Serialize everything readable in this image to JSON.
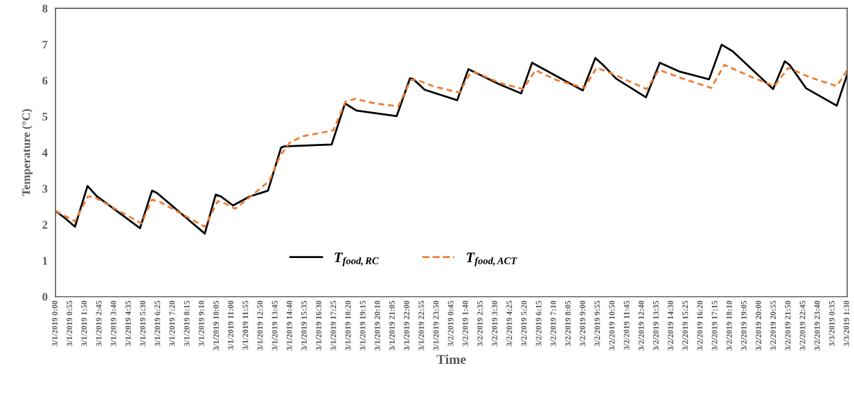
{
  "chart_data": {
    "type": "line",
    "xlabel": "Time",
    "ylabel": "Temperature (°C)",
    "xlim": [
      "2019-03-01T00:00",
      "2019-03-03T01:30"
    ],
    "ylim": [
      0,
      8
    ],
    "yticks": [
      0,
      1,
      2,
      3,
      4,
      5,
      6,
      7,
      8
    ],
    "xticks": [
      {
        "value": "2019-03-01T00:00",
        "label": "3/1/2019 0:00"
      },
      {
        "value": "2019-03-01T00:55",
        "label": "3/1/2019 0:55"
      },
      {
        "value": "2019-03-01T01:50",
        "label": "3/1/2019 1:50"
      },
      {
        "value": "2019-03-01T02:45",
        "label": "3/1/2019 2:45"
      },
      {
        "value": "2019-03-01T03:40",
        "label": "3/1/2019 3:40"
      },
      {
        "value": "2019-03-01T04:35",
        "label": "3/1/2019 4:35"
      },
      {
        "value": "2019-03-01T05:30",
        "label": "3/1/2019 5:30"
      },
      {
        "value": "2019-03-01T06:25",
        "label": "3/1/2019 6:25"
      },
      {
        "value": "2019-03-01T07:20",
        "label": "3/1/2019 7:20"
      },
      {
        "value": "2019-03-01T08:15",
        "label": "3/1/2019 8:15"
      },
      {
        "value": "2019-03-01T09:10",
        "label": "3/1/2019 9:10"
      },
      {
        "value": "2019-03-01T10:05",
        "label": "3/1/2019 10:05"
      },
      {
        "value": "2019-03-01T11:00",
        "label": "3/1/2019 11:00"
      },
      {
        "value": "2019-03-01T11:55",
        "label": "3/1/2019 11:55"
      },
      {
        "value": "2019-03-01T12:50",
        "label": "3/1/2019 12:50"
      },
      {
        "value": "2019-03-01T13:45",
        "label": "3/1/2019 13:45"
      },
      {
        "value": "2019-03-01T14:40",
        "label": "3/1/2019 14:40"
      },
      {
        "value": "2019-03-01T15:35",
        "label": "3/1/2019 15:35"
      },
      {
        "value": "2019-03-01T16:30",
        "label": "3/1/2019 16:30"
      },
      {
        "value": "2019-03-01T17:25",
        "label": "3/1/2019 17:25"
      },
      {
        "value": "2019-03-01T18:20",
        "label": "3/1/2019 18:20"
      },
      {
        "value": "2019-03-01T19:15",
        "label": "3/1/2019 19:15"
      },
      {
        "value": "2019-03-01T20:10",
        "label": "3/1/2019 20:10"
      },
      {
        "value": "2019-03-01T21:05",
        "label": "3/1/2019 21:05"
      },
      {
        "value": "2019-03-01T22:00",
        "label": "3/1/2019 22:00"
      },
      {
        "value": "2019-03-01T22:55",
        "label": "3/1/2019 22:55"
      },
      {
        "value": "2019-03-01T23:50",
        "label": "3/1/2019 23:50"
      },
      {
        "value": "2019-03-02T00:45",
        "label": "3/2/2019 0:45"
      },
      {
        "value": "2019-03-02T01:40",
        "label": "3/2/2019 1:40"
      },
      {
        "value": "2019-03-02T02:35",
        "label": "3/2/2019 2:35"
      },
      {
        "value": "2019-03-02T03:30",
        "label": "3/2/2019 3:30"
      },
      {
        "value": "2019-03-02T04:25",
        "label": "3/2/2019 4:25"
      },
      {
        "value": "2019-03-02T05:20",
        "label": "3/2/2019 5:20"
      },
      {
        "value": "2019-03-02T06:15",
        "label": "3/2/2019 6:15"
      },
      {
        "value": "2019-03-02T07:10",
        "label": "3/2/2019 7:10"
      },
      {
        "value": "2019-03-02T08:05",
        "label": "3/2/2019 8:05"
      },
      {
        "value": "2019-03-02T09:00",
        "label": "3/2/2019 9:00"
      },
      {
        "value": "2019-03-02T09:55",
        "label": "3/2/2019 9:55"
      },
      {
        "value": "2019-03-02T10:50",
        "label": "3/2/2019 10:50"
      },
      {
        "value": "2019-03-02T11:45",
        "label": "3/2/2019 11:45"
      },
      {
        "value": "2019-03-02T12:40",
        "label": "3/2/2019 12:40"
      },
      {
        "value": "2019-03-02T13:35",
        "label": "3/2/2019 13:35"
      },
      {
        "value": "2019-03-02T14:30",
        "label": "3/2/2019 14:30"
      },
      {
        "value": "2019-03-02T15:25",
        "label": "3/2/2019 15:25"
      },
      {
        "value": "2019-03-02T16:20",
        "label": "3/2/2019 16:20"
      },
      {
        "value": "2019-03-02T17:15",
        "label": "3/2/2019 17:15"
      },
      {
        "value": "2019-03-02T18:10",
        "label": "3/2/2019 18:10"
      },
      {
        "value": "2019-03-02T19:05",
        "label": "3/2/2019 19:05"
      },
      {
        "value": "2019-03-02T20:00",
        "label": "3/2/2019 20:00"
      },
      {
        "value": "2019-03-02T20:55",
        "label": "3/2/2019 20:55"
      },
      {
        "value": "2019-03-02T21:50",
        "label": "3/2/2019 21:50"
      },
      {
        "value": "2019-03-02T22:45",
        "label": "3/2/2019 22:45"
      },
      {
        "value": "2019-03-02T23:40",
        "label": "3/2/2019 23:40"
      },
      {
        "value": "2019-03-03T00:35",
        "label": "3/3/2019 0:35"
      },
      {
        "value": "2019-03-03T01:30",
        "label": "3/3/2019 1:30"
      }
    ],
    "grid": false,
    "legend": "bottom",
    "marker": "none",
    "series": [
      {
        "name": "T$_{food,RC}$",
        "color": "#000000",
        "line_style": "solid",
        "x": [
          "2019-03-01T00:00",
          "2019-03-01T00:37",
          "2019-03-01T01:13",
          "2019-03-01T02:00",
          "2019-03-01T02:36",
          "2019-03-01T05:17",
          "2019-03-01T06:02",
          "2019-03-01T06:20",
          "2019-03-01T09:20",
          "2019-03-01T10:01",
          "2019-03-01T10:20",
          "2019-03-01T11:06",
          "2019-03-01T12:09",
          "2019-03-01T13:17",
          "2019-03-01T14:06",
          "2019-03-01T14:18",
          "2019-03-01T17:16",
          "2019-03-01T18:06",
          "2019-03-01T18:50",
          "2019-03-01T21:20",
          "2019-03-01T22:10",
          "2019-03-01T22:23",
          "2019-03-01T23:05",
          "2019-03-02T01:07",
          "2019-03-02T01:49",
          "2019-03-02T03:46",
          "2019-03-02T05:07",
          "2019-03-02T05:48",
          "2019-03-02T08:58",
          "2019-03-02T09:45",
          "2019-03-02T10:14",
          "2019-03-02T11:03",
          "2019-03-02T12:55",
          "2019-03-02T13:47",
          "2019-03-02T15:03",
          "2019-03-02T16:52",
          "2019-03-02T17:39",
          "2019-03-02T18:20",
          "2019-03-02T20:52",
          "2019-03-02T21:36",
          "2019-03-02T21:54",
          "2019-03-02T22:56",
          "2019-03-03T00:51",
          "2019-03-03T01:30"
        ],
        "values": [
          2.38,
          2.17,
          1.94,
          3.07,
          2.78,
          1.9,
          2.94,
          2.88,
          1.75,
          2.83,
          2.78,
          2.53,
          2.78,
          2.94,
          4.13,
          4.17,
          4.22,
          5.36,
          5.16,
          5.01,
          6.06,
          6.03,
          5.74,
          5.45,
          6.31,
          5.89,
          5.64,
          6.49,
          5.72,
          6.62,
          6.43,
          6.05,
          5.53,
          6.49,
          6.24,
          6.03,
          6.99,
          6.81,
          5.76,
          6.53,
          6.43,
          5.78,
          5.3,
          6.16
        ]
      },
      {
        "name": "T$_{food,ACT}$",
        "color": "#ed7d31",
        "line_style": "dashed",
        "x": [
          "2019-03-01T00:00",
          "2019-03-01T01:13",
          "2019-03-01T02:02",
          "2019-03-01T02:26",
          "2019-03-01T05:23",
          "2019-03-01T06:02",
          "2019-03-01T06:31",
          "2019-03-01T09:20",
          "2019-03-01T10:09",
          "2019-03-01T10:35",
          "2019-03-01T11:14",
          "2019-03-01T12:09",
          "2019-03-01T13:22",
          "2019-03-01T14:04",
          "2019-03-01T14:40",
          "2019-03-01T15:27",
          "2019-03-01T17:22",
          "2019-03-01T18:08",
          "2019-03-01T18:44",
          "2019-03-01T19:58",
          "2019-03-01T21:26",
          "2019-03-01T22:13",
          "2019-03-01T22:34",
          "2019-03-01T23:36",
          "2019-03-02T01:15",
          "2019-03-02T01:56",
          "2019-03-02T02:17",
          "2019-03-02T03:46",
          "2019-03-02T05:14",
          "2019-03-02T06:01",
          "2019-03-02T07:19",
          "2019-03-02T09:04",
          "2019-03-02T09:50",
          "2019-03-02T10:43",
          "2019-03-02T12:58",
          "2019-03-02T13:44",
          "2019-03-02T15:13",
          "2019-03-02T17:00",
          "2019-03-02T17:49",
          "2019-03-02T19:23",
          "2019-03-02T20:57",
          "2019-03-02T21:49",
          "2019-03-02T23:12",
          "2019-03-03T00:51",
          "2019-03-03T01:30"
        ],
        "values": [
          2.38,
          2.09,
          2.78,
          2.76,
          2.03,
          2.69,
          2.63,
          1.94,
          2.65,
          2.59,
          2.44,
          2.76,
          3.21,
          3.93,
          4.28,
          4.45,
          4.61,
          5.41,
          5.49,
          5.36,
          5.28,
          6.01,
          6.02,
          5.84,
          5.66,
          6.2,
          6.22,
          5.93,
          5.76,
          6.28,
          6.01,
          5.79,
          6.35,
          6.2,
          5.76,
          6.29,
          6.05,
          5.79,
          6.43,
          6.12,
          5.84,
          6.35,
          6.08,
          5.84,
          6.28
        ]
      }
    ]
  }
}
